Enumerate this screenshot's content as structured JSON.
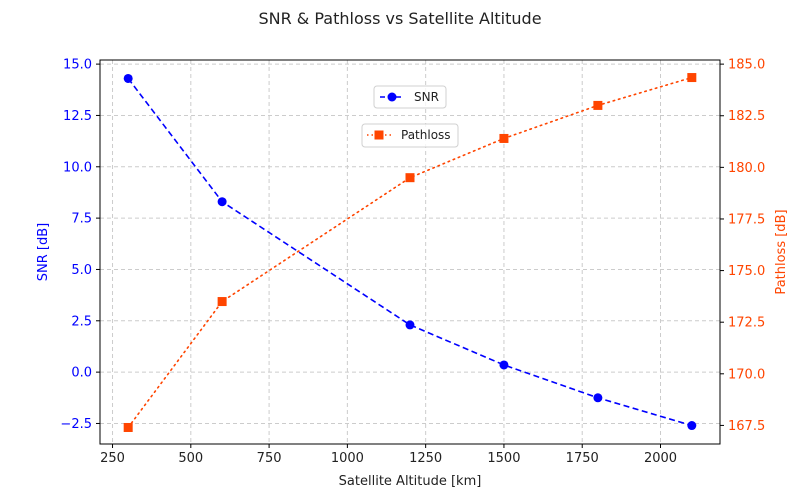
{
  "chart_data": {
    "type": "line",
    "title": "SNR & Pathloss vs Satellite Altitude",
    "xlabel": "Satellite Altitude [km]",
    "ylabel_left": "SNR [dB]",
    "ylabel_right": "Pathloss [dB]",
    "x": [
      300,
      600,
      1200,
      1500,
      1800,
      2100
    ],
    "xlim": [
      210,
      2190
    ],
    "xticks": [
      250,
      500,
      750,
      1000,
      1250,
      1500,
      1750,
      2000
    ],
    "xtick_labels": [
      "250",
      "500",
      "750",
      "1000",
      "1250",
      "1500",
      "1750",
      "2000"
    ],
    "ylim_left": [
      -3.5,
      15.2
    ],
    "yticks_left": [
      -2.5,
      0.0,
      2.5,
      5.0,
      7.5,
      10.0,
      12.5,
      15.0
    ],
    "ytick_labels_left": [
      "−2.5",
      "0.0",
      "2.5",
      "5.0",
      "7.5",
      "10.0",
      "12.5",
      "15.0"
    ],
    "ylim_right": [
      166.6,
      185.2
    ],
    "yticks_right": [
      167.5,
      170.0,
      172.5,
      175.0,
      177.5,
      180.0,
      182.5,
      185.0
    ],
    "ytick_labels_right": [
      "167.5",
      "170.0",
      "172.5",
      "175.0",
      "177.5",
      "180.0",
      "182.5",
      "185.0"
    ],
    "grid": true,
    "series": [
      {
        "name": "SNR",
        "axis": "left",
        "values": [
          14.3,
          8.3,
          2.3,
          0.35,
          -1.25,
          -2.6
        ],
        "color": "#0000ff",
        "linestyle": "dashed",
        "marker": "circle"
      },
      {
        "name": "Pathloss",
        "axis": "right",
        "values": [
          167.4,
          173.5,
          179.5,
          181.4,
          183.0,
          184.35
        ],
        "color": "#ff4500",
        "linestyle": "dotted",
        "marker": "square"
      }
    ],
    "legends": [
      {
        "label": "SNR",
        "placement": "upper-center"
      },
      {
        "label": "Pathloss",
        "placement": "upper-center-below"
      }
    ]
  }
}
